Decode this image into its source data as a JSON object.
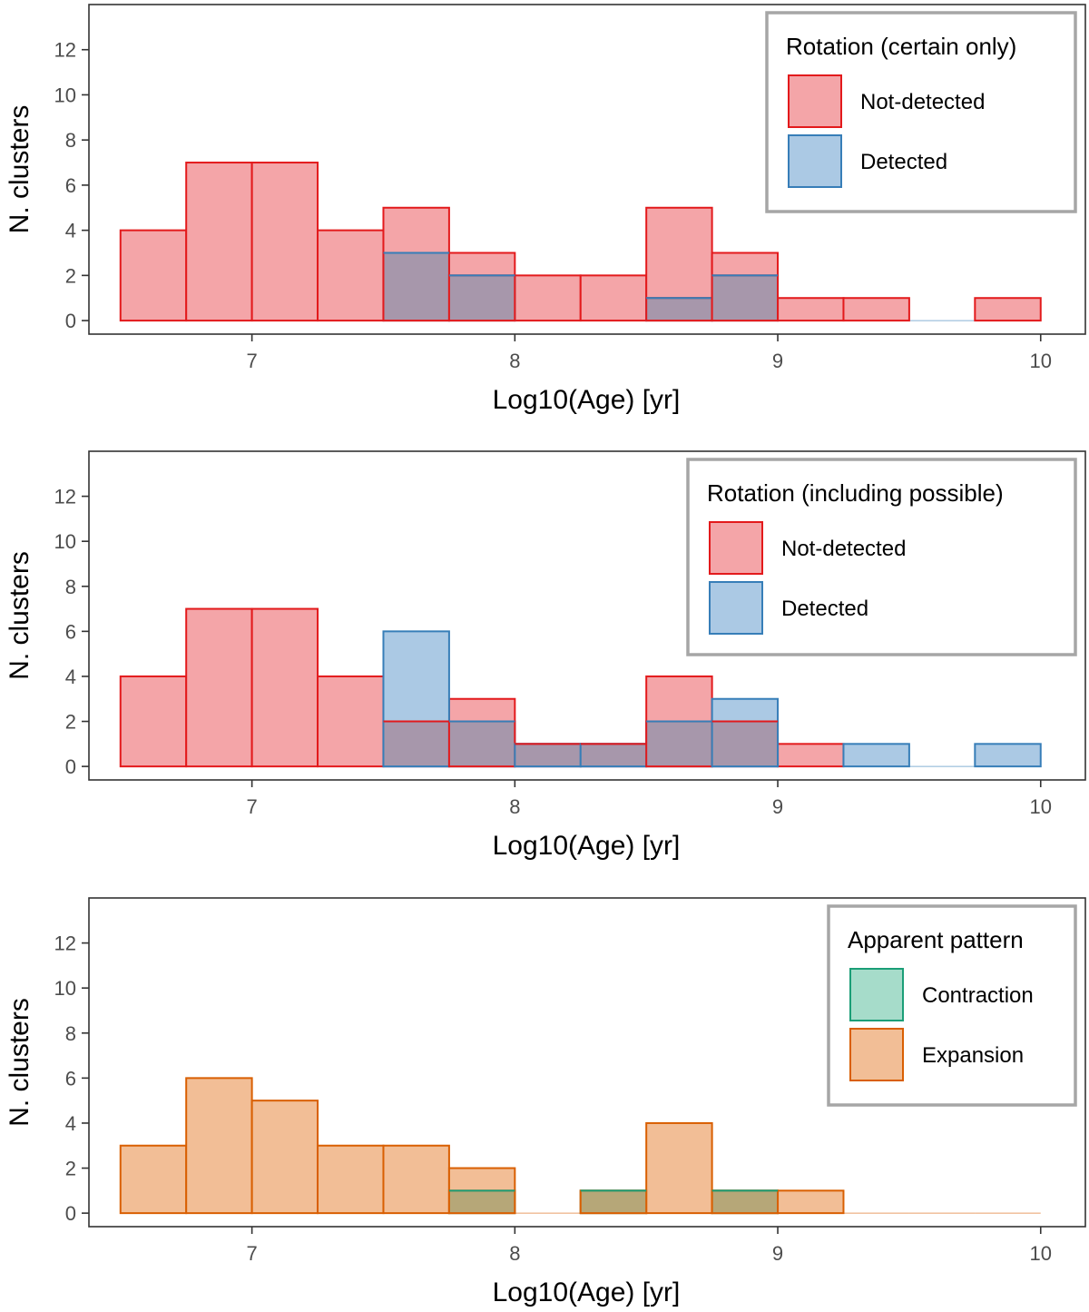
{
  "chart_data": [
    {
      "type": "bar",
      "title": "",
      "xlabel": "Log10(Age) [yr]",
      "ylabel": "N. clusters",
      "xlim": [
        6.38,
        10.17
      ],
      "ylim": [
        -0.6,
        14
      ],
      "xticks": [
        "7",
        "8",
        "9",
        "10"
      ],
      "yticks": [
        "0",
        "2",
        "4",
        "6",
        "8",
        "10",
        "12"
      ],
      "bin_edges": [
        6.5,
        6.75,
        7.0,
        7.25,
        7.5,
        7.75,
        8.0,
        8.25,
        8.5,
        8.75,
        9.0,
        9.25,
        9.5,
        9.75,
        10.0
      ],
      "legend": {
        "title": "Rotation (certain only)",
        "position": "top-right"
      },
      "series": [
        {
          "name": "Not-detected",
          "fill": "#f4a5a8",
          "stroke": "#e31a1c",
          "values": [
            4,
            7,
            7,
            4,
            5,
            3,
            2,
            2,
            5,
            3,
            1,
            1,
            0,
            1
          ]
        },
        {
          "name": "Detected",
          "fill": "#abc9e4",
          "stroke": "#377eb8",
          "values": [
            0,
            0,
            0,
            0,
            3,
            2,
            0,
            0,
            1,
            2,
            0,
            0,
            0,
            0
          ]
        }
      ],
      "overlap_fill": "#a797ab"
    },
    {
      "type": "bar",
      "title": "",
      "xlabel": "Log10(Age) [yr]",
      "ylabel": "N. clusters",
      "xlim": [
        6.38,
        10.17
      ],
      "ylim": [
        -0.6,
        14
      ],
      "xticks": [
        "7",
        "8",
        "9",
        "10"
      ],
      "yticks": [
        "0",
        "2",
        "4",
        "6",
        "8",
        "10",
        "12"
      ],
      "bin_edges": [
        6.5,
        6.75,
        7.0,
        7.25,
        7.5,
        7.75,
        8.0,
        8.25,
        8.5,
        8.75,
        9.0,
        9.25,
        9.5,
        9.75,
        10.0
      ],
      "legend": {
        "title": "Rotation (including possible)",
        "position": "top-right"
      },
      "series": [
        {
          "name": "Not-detected",
          "fill": "#f4a5a8",
          "stroke": "#e31a1c",
          "values": [
            4,
            7,
            7,
            4,
            2,
            3,
            1,
            1,
            4,
            2,
            1,
            0,
            0,
            0
          ]
        },
        {
          "name": "Detected",
          "fill": "#abc9e4",
          "stroke": "#377eb8",
          "values": [
            0,
            0,
            0,
            0,
            6,
            2,
            1,
            1,
            2,
            3,
            0,
            1,
            0,
            1
          ]
        }
      ],
      "overlap_fill": "#a797ab"
    },
    {
      "type": "bar",
      "title": "",
      "xlabel": "Log10(Age) [yr]",
      "ylabel": "N. clusters",
      "xlim": [
        6.38,
        10.17
      ],
      "ylim": [
        -0.6,
        14
      ],
      "xticks": [
        "7",
        "8",
        "9",
        "10"
      ],
      "yticks": [
        "0",
        "2",
        "4",
        "6",
        "8",
        "10",
        "12"
      ],
      "bin_edges": [
        6.5,
        6.75,
        7.0,
        7.25,
        7.5,
        7.75,
        8.0,
        8.25,
        8.5,
        8.75,
        9.0,
        9.25,
        9.5,
        9.75,
        10.0
      ],
      "legend": {
        "title": "Apparent pattern",
        "position": "top-right"
      },
      "series": [
        {
          "name": "Contraction",
          "fill": "#a6dcca",
          "stroke": "#1b9e77",
          "values": [
            0,
            0,
            0,
            0,
            0,
            1,
            0,
            1,
            0,
            1,
            0,
            0,
            0,
            0
          ]
        },
        {
          "name": "Expansion",
          "fill": "#f2be96",
          "stroke": "#d95f02",
          "values": [
            3,
            6,
            5,
            3,
            3,
            2,
            0,
            1,
            4,
            1,
            1,
            0,
            0,
            0
          ]
        }
      ],
      "overlap_fill": "#b6a778"
    }
  ]
}
